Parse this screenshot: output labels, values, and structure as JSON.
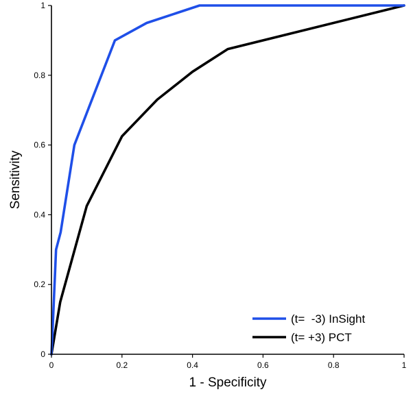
{
  "chart_data": {
    "type": "line",
    "title": "",
    "xlabel": "1 - Specificity",
    "ylabel": "Sensitivity",
    "xlim": [
      0,
      1
    ],
    "ylim": [
      0,
      1
    ],
    "xticks": [
      "0",
      "0.2",
      "0.4",
      "0.6",
      "0.8",
      "1"
    ],
    "yticks": [
      "0",
      "0.2",
      "0.4",
      "0.6",
      "0.8",
      "1"
    ],
    "grid": false,
    "legend_position": "bottom-right",
    "series": [
      {
        "name": "(t=  -3) InSight",
        "color": "#1f4fe8",
        "x": [
          0,
          0.004,
          0.013,
          0.026,
          0.065,
          0.18,
          0.27,
          0.42,
          1
        ],
        "y": [
          0,
          0.09,
          0.3,
          0.35,
          0.6,
          0.9,
          0.95,
          1.0,
          1.0
        ]
      },
      {
        "name": "(t= +3) PCT",
        "color": "#000000",
        "x": [
          0,
          0.025,
          0.1,
          0.2,
          0.3,
          0.4,
          0.5,
          1
        ],
        "y": [
          0,
          0.15,
          0.425,
          0.625,
          0.73,
          0.81,
          0.875,
          1.0
        ]
      }
    ]
  }
}
